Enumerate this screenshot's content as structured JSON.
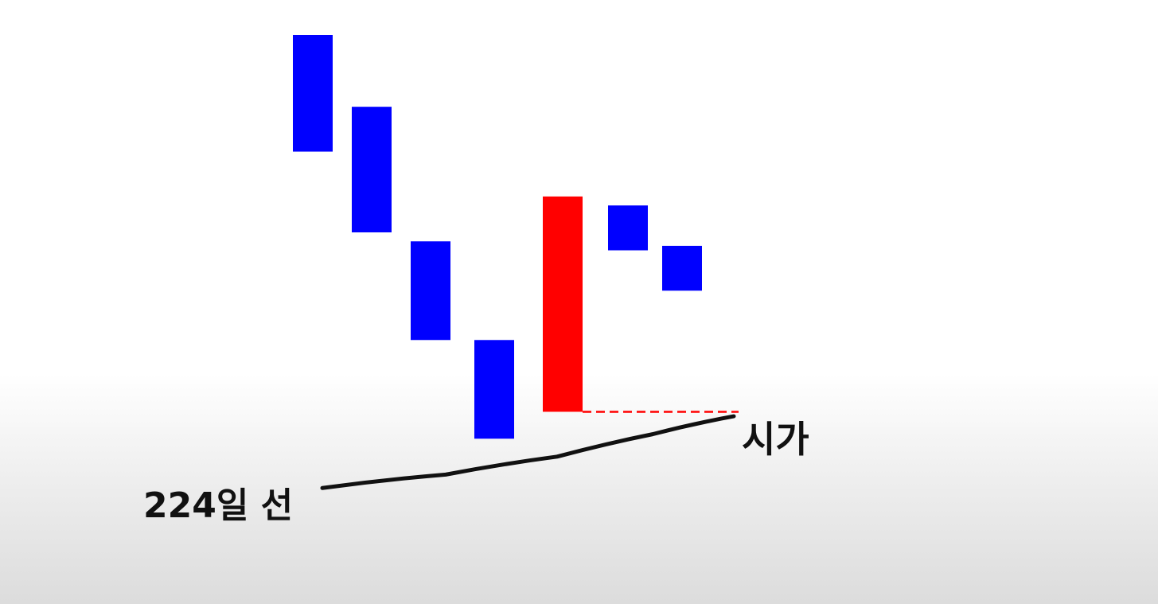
{
  "chart_data": {
    "type": "candlestick",
    "candles": [
      {
        "open": 100,
        "close": 87,
        "direction": "down"
      },
      {
        "open": 92,
        "close": 78,
        "direction": "down"
      },
      {
        "open": 77,
        "close": 66,
        "direction": "down"
      },
      {
        "open": 66,
        "close": 55,
        "direction": "down"
      },
      {
        "open": 58,
        "close": 82,
        "direction": "up"
      },
      {
        "open": 81,
        "close": 76,
        "direction": "down"
      },
      {
        "open": 76.5,
        "close": 71.5,
        "direction": "down"
      }
    ],
    "moving_average": {
      "label": "224일 선",
      "values": [
        49.5,
        51,
        53,
        55.5,
        57.5
      ]
    },
    "annotations": [
      {
        "text": "시가",
        "target": "candle-5-open"
      }
    ],
    "colors": {
      "up": "#ff0000",
      "down": "#0000ff",
      "line": "#111111",
      "dashed": "#ff0000"
    },
    "ylim": [
      45,
      100
    ]
  }
}
